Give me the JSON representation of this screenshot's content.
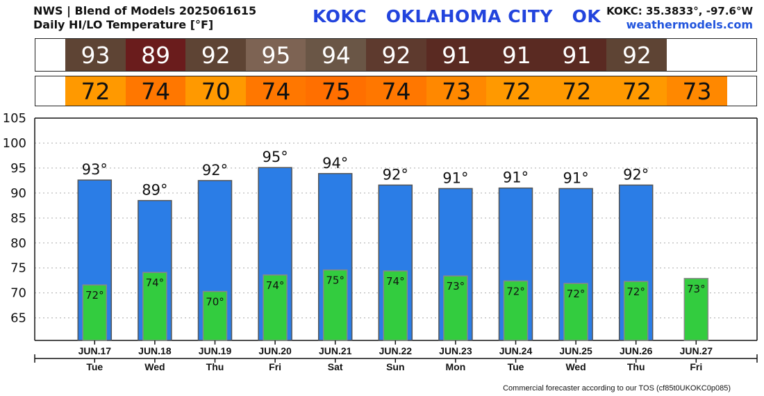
{
  "header": {
    "line1": "NWS | Blend of Models 2025061615",
    "line2": "Daily HI/LO Temperature [°F]",
    "station_title": "KOKC   OKLAHOMA CITY   OK",
    "coords": "KOKC: 35.3833°, -97.6°W",
    "site": "weathermodels.com"
  },
  "footer": "Commercial forecaster according to our TOS (cf85t0UKOKC0p085)",
  "colors": {
    "hi_bar": "#2b7de6",
    "lo_bar": "#33cc3f",
    "hi_strip": [
      "#5e4434",
      "#6a1c1c",
      "#5e4434",
      "#7d6353",
      "#6a5646",
      "#5e3a2e",
      "#5a2a22",
      "#5a2a22",
      "#5a2a22",
      "#5e4434"
    ],
    "lo_strip": [
      "#ff9900",
      "#ff7700",
      "#ff9900",
      "#ff7700",
      "#ff6f00",
      "#ff7700",
      "#ff8800",
      "#ff9900",
      "#ff9900",
      "#ff9900",
      "#ff8800"
    ]
  },
  "chart_data": {
    "type": "bar",
    "title": "Daily HI/LO Temperature [°F]",
    "categories": [
      "JUN.17",
      "JUN.18",
      "JUN.19",
      "JUN.20",
      "JUN.21",
      "JUN.22",
      "JUN.23",
      "JUN.24",
      "JUN.25",
      "JUN.26",
      "JUN.27"
    ],
    "days": [
      "Tue",
      "Wed",
      "Thu",
      "Fri",
      "Sat",
      "Sun",
      "Mon",
      "Tue",
      "Wed",
      "Thu",
      "Fri"
    ],
    "series": [
      {
        "name": "HI",
        "values": [
          92.6,
          88.5,
          92.5,
          95.1,
          93.9,
          91.6,
          90.9,
          91.0,
          90.9,
          91.6,
          null
        ],
        "labels": [
          "93°",
          "89°",
          "92°",
          "95°",
          "94°",
          "92°",
          "91°",
          "91°",
          "91°",
          "92°",
          ""
        ]
      },
      {
        "name": "LO",
        "values": [
          71.6,
          74.1,
          70.3,
          73.6,
          74.6,
          74.4,
          73.4,
          72.4,
          71.9,
          72.3,
          72.9
        ],
        "labels": [
          "72°",
          "74°",
          "70°",
          "74°",
          "75°",
          "74°",
          "73°",
          "72°",
          "72°",
          "72°",
          "73°"
        ]
      }
    ],
    "hi_strip": [
      "93",
      "89",
      "92",
      "95",
      "94",
      "92",
      "91",
      "91",
      "91",
      "92"
    ],
    "lo_strip": [
      "72",
      "74",
      "70",
      "74",
      "75",
      "74",
      "73",
      "72",
      "72",
      "72",
      "73"
    ],
    "yticks": [
      105,
      100,
      95,
      90,
      85,
      80,
      75,
      70,
      65
    ],
    "ylim": [
      60.5,
      105
    ],
    "grid": true
  }
}
